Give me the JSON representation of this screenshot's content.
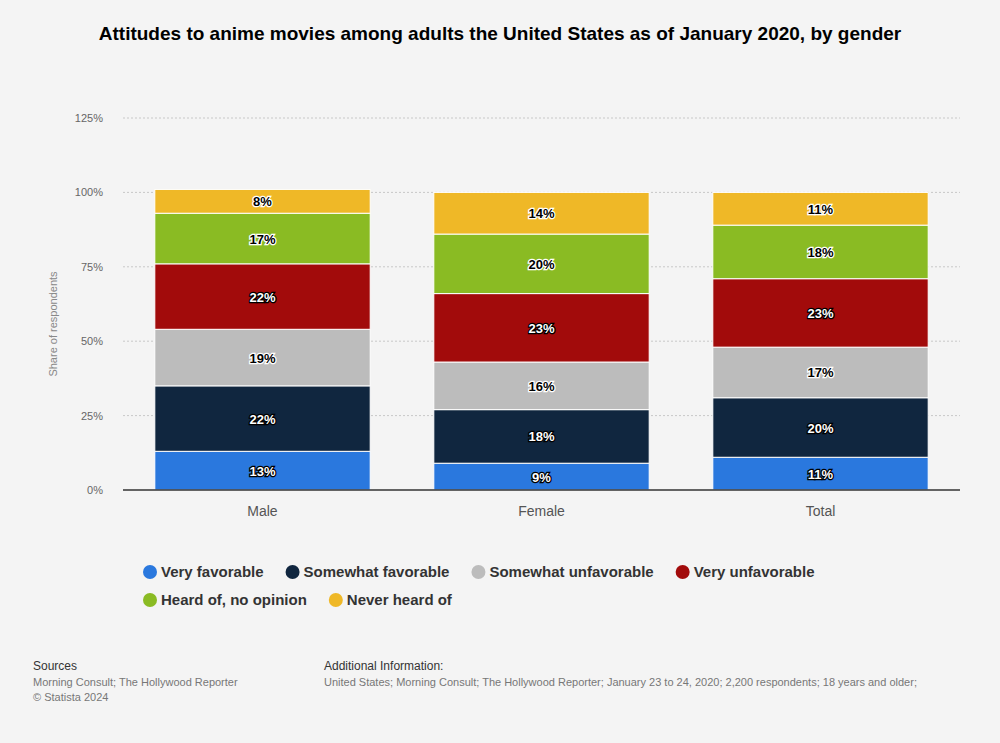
{
  "chart_data": {
    "type": "bar",
    "title": "Attitudes to anime movies among adults the United States as of January 2020, by gender",
    "ylabel": "Share of respondents",
    "categories": [
      "Male",
      "Female",
      "Total"
    ],
    "stacked": true,
    "data_labels": true,
    "grid": true,
    "legend": "bottom",
    "ylim": [
      0,
      125
    ],
    "yticks": [
      {
        "value": 0,
        "label": "0%"
      },
      {
        "value": 25,
        "label": "25%"
      },
      {
        "value": 50,
        "label": "50%"
      },
      {
        "value": 75,
        "label": "75%"
      },
      {
        "value": 100,
        "label": "100%"
      },
      {
        "value": 125,
        "label": "125%"
      }
    ],
    "series": [
      {
        "name": "Very favorable",
        "color": "#2a78de",
        "values": [
          13,
          9,
          11
        ],
        "value_labels": [
          "13%",
          "9%",
          "11%"
        ]
      },
      {
        "name": "Somewhat favorable",
        "color": "#10263f",
        "values": [
          22,
          18,
          20
        ],
        "value_labels": [
          "22%",
          "18%",
          "20%"
        ]
      },
      {
        "name": "Somewhat unfavorable",
        "color": "#bcbcbc",
        "values": [
          19,
          16,
          17
        ],
        "value_labels": [
          "19%",
          "16%",
          "17%"
        ]
      },
      {
        "name": "Very unfavorable",
        "color": "#a20b0b",
        "values": [
          22,
          23,
          23
        ],
        "value_labels": [
          "22%",
          "23%",
          "23%"
        ]
      },
      {
        "name": "Heard of, no opinion",
        "color": "#8abb23",
        "values": [
          17,
          20,
          18
        ],
        "value_labels": [
          "17%",
          "20%",
          "18%"
        ]
      },
      {
        "name": "Never heard of",
        "color": "#efb827",
        "values": [
          8,
          14,
          11
        ],
        "value_labels": [
          "8%",
          "14%",
          "11%"
        ]
      }
    ],
    "notes": {
      "sources_heading": "Sources",
      "sources": "Morning Consult; The Hollywood Reporter",
      "copyright": "© Statista 2024",
      "additional_heading": "Additional Information:",
      "additional": "United States; Morning Consult; The Hollywood Reporter; January 23 to 24, 2020; 2,200 respondents; 18 years and older;"
    }
  }
}
